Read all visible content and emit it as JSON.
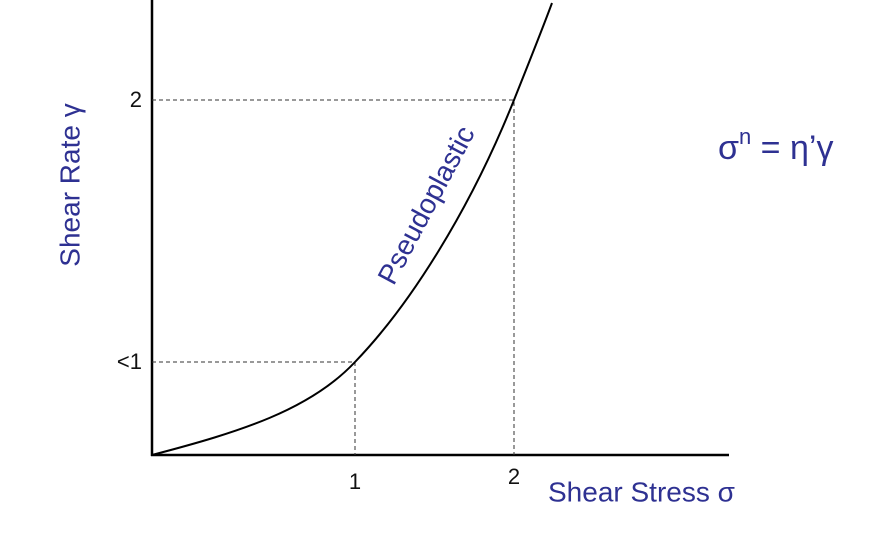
{
  "diagram": {
    "y_axis_label": "Shear Rate γ",
    "x_axis_label": "Shear Stress σ",
    "y_tick_labels": [
      "2",
      "<1"
    ],
    "x_tick_labels": [
      "1",
      "2"
    ],
    "curve_label": "Pseudoplastic",
    "equation": {
      "base": "σ",
      "exponent": "n",
      "rest": " = η’γ"
    }
  }
}
